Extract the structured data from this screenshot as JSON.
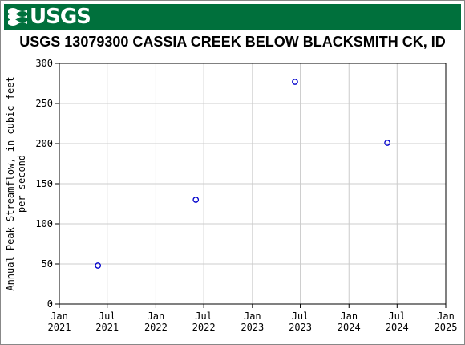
{
  "header": {
    "logo_text": "USGS",
    "logo_icon": "usgs-wave-icon",
    "banner_color": "#00703c"
  },
  "chart_data": {
    "type": "scatter",
    "title": "USGS 13079300 CASSIA CREEK BELOW BLACKSMITH CK, ID",
    "xlabel": "",
    "ylabel_lines": [
      "Annual Peak Streamflow, in cubic feet",
      "per second"
    ],
    "x_axis": "date",
    "xlim": [
      "2021-01-01",
      "2025-01-01"
    ],
    "ylim": [
      0,
      300
    ],
    "grid": true,
    "xticks": [
      {
        "date": "2021-01-01",
        "line1": "Jan",
        "line2": "2021"
      },
      {
        "date": "2021-07-01",
        "line1": "Jul",
        "line2": "2021"
      },
      {
        "date": "2022-01-01",
        "line1": "Jan",
        "line2": "2022"
      },
      {
        "date": "2022-07-01",
        "line1": "Jul",
        "line2": "2022"
      },
      {
        "date": "2023-01-01",
        "line1": "Jan",
        "line2": "2023"
      },
      {
        "date": "2023-07-01",
        "line1": "Jul",
        "line2": "2023"
      },
      {
        "date": "2024-01-01",
        "line1": "Jan",
        "line2": "2024"
      },
      {
        "date": "2024-07-01",
        "line1": "Jul",
        "line2": "2024"
      },
      {
        "date": "2025-01-01",
        "line1": "Jan",
        "line2": "2025"
      }
    ],
    "yticks": [
      0,
      50,
      100,
      150,
      200,
      250,
      300
    ],
    "series": [
      {
        "marker": "open-circle",
        "color": "#0000cc",
        "points": [
          {
            "x": "2021-05-27",
            "y": 48
          },
          {
            "x": "2022-06-01",
            "y": 130
          },
          {
            "x": "2023-06-11",
            "y": 277
          },
          {
            "x": "2024-05-25",
            "y": 201
          }
        ]
      }
    ]
  }
}
